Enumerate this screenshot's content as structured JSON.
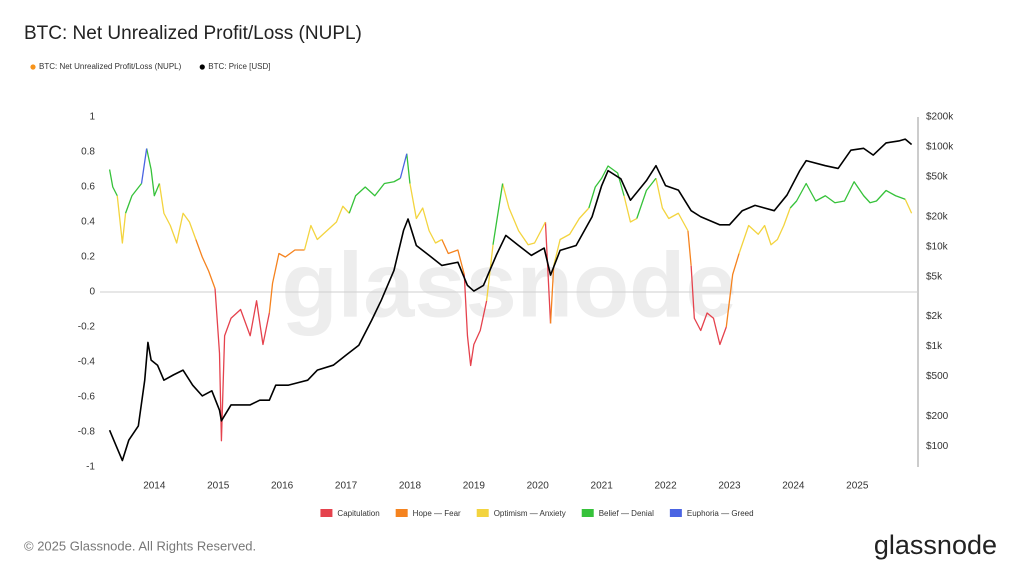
{
  "chart_data": {
    "type": "line",
    "title": "BTC: Net Unrealized Profit/Loss (NUPL)",
    "watermark": "glassnode",
    "footer": "© 2025 Glassnode. All Rights Reserved.",
    "brand": "glassnode",
    "nupl": {
      "name": "BTC: Net Unrealized Profit/Loss (NUPL)",
      "color": "#f7931a"
    },
    "xlim": [
      2013.15,
      2025.95
    ],
    "xticks": [
      2014,
      2015,
      2016,
      2017,
      2018,
      2019,
      2020,
      2021,
      2022,
      2023,
      2024,
      2025
    ],
    "ylim": [
      -1,
      1
    ],
    "yticks": [
      -1,
      -0.8,
      -0.6,
      -0.4,
      -0.2,
      0,
      0.2,
      0.4,
      0.6,
      0.8,
      1
    ],
    "zero_line": true,
    "y2log": true,
    "y2lim": [
      62,
      200000
    ],
    "y2ticks": [
      {
        "value": 100,
        "label": "$100"
      },
      {
        "value": 200,
        "label": "$200"
      },
      {
        "value": 500,
        "label": "$500"
      },
      {
        "value": 1000,
        "label": "$1k"
      },
      {
        "value": 2000,
        "label": "$2k"
      },
      {
        "value": 5000,
        "label": "$5k"
      },
      {
        "value": 10000,
        "label": "$10k"
      },
      {
        "value": 20000,
        "label": "$20k"
      },
      {
        "value": 50000,
        "label": "$50k"
      },
      {
        "value": 100000,
        "label": "$100k"
      },
      {
        "value": 200000,
        "label": "$200k"
      }
    ],
    "series": [
      {
        "name": "Capitulation",
        "color": "#e5424d",
        "x": [
          2014.95,
          2015.02,
          2015.05,
          2015.1,
          2015.2,
          2015.35,
          2015.5,
          2015.6,
          2015.7,
          2015.8,
          null,
          2018.85,
          2018.9,
          2018.95,
          2019.0,
          2019.1,
          2019.2,
          null,
          2020.12,
          2020.2,
          null,
          2022.4,
          2022.45,
          2022.55,
          2022.65,
          2022.75,
          2022.85,
          2022.95
        ],
        "values": [
          0.02,
          -0.35,
          -0.85,
          -0.25,
          -0.15,
          -0.1,
          -0.25,
          -0.05,
          -0.3,
          -0.12,
          null,
          0.1,
          -0.25,
          -0.42,
          -0.3,
          -0.22,
          -0.05,
          null,
          0.4,
          -0.18,
          null,
          0.15,
          -0.15,
          -0.22,
          -0.12,
          -0.15,
          -0.3,
          -0.2
        ]
      },
      {
        "name": "Hope — Fear",
        "color": "#f5831f",
        "x": [
          2014.65,
          2014.75,
          2014.85,
          2014.95,
          null,
          2015.8,
          2015.85,
          2015.95,
          2016.05,
          2016.2,
          2016.35,
          null,
          2018.5,
          2018.6,
          2018.75,
          2018.85,
          null,
          2020.2,
          2020.25,
          null,
          2022.35,
          2022.4,
          null,
          2022.95,
          2023.05,
          2023.15
        ],
        "values": [
          0.3,
          0.2,
          0.12,
          0.02,
          null,
          -0.12,
          0.05,
          0.22,
          0.2,
          0.24,
          0.24,
          null,
          0.3,
          0.22,
          0.24,
          0.1,
          null,
          -0.18,
          0.15,
          null,
          0.35,
          0.15,
          null,
          -0.2,
          0.1,
          0.22
        ]
      },
      {
        "name": "Optimism — Anxiety",
        "color": "#f3d43f",
        "x": [
          2013.42,
          2013.5,
          2013.55,
          null,
          2014.08,
          2014.15,
          2014.25,
          2014.35,
          2014.45,
          2014.55,
          2014.65,
          null,
          2016.35,
          2016.45,
          2016.55,
          2016.7,
          2016.85,
          2016.95,
          2017.05,
          null,
          2018.0,
          2018.1,
          2018.2,
          2018.3,
          2018.4,
          2018.5,
          null,
          2019.2,
          2019.3,
          null,
          2019.45,
          2019.55,
          2019.7,
          2019.85,
          2019.95,
          2020.05,
          2020.12,
          null,
          2020.25,
          2020.35,
          2020.5,
          2020.65,
          2020.8,
          null,
          2021.35,
          2021.45,
          2021.55,
          null,
          2021.85,
          2021.95,
          2022.05,
          2022.2,
          2022.35,
          null,
          2023.15,
          2023.3,
          2023.45,
          2023.55,
          2023.65,
          2023.75,
          2023.85,
          2023.95,
          null,
          2025.75,
          2025.85
        ],
        "values": [
          0.55,
          0.28,
          0.45,
          null,
          0.62,
          0.45,
          0.38,
          0.28,
          0.45,
          0.4,
          0.3,
          null,
          0.24,
          0.38,
          0.3,
          0.35,
          0.4,
          0.49,
          0.45,
          null,
          0.62,
          0.42,
          0.48,
          0.35,
          0.28,
          0.3,
          null,
          -0.05,
          0.27,
          null,
          0.62,
          0.48,
          0.35,
          0.27,
          0.28,
          0.35,
          0.4,
          null,
          0.15,
          0.3,
          0.33,
          0.42,
          0.48,
          null,
          0.55,
          0.4,
          0.42,
          null,
          0.65,
          0.48,
          0.42,
          0.45,
          0.35,
          null,
          0.22,
          0.38,
          0.33,
          0.38,
          0.27,
          0.3,
          0.38,
          0.48,
          null,
          0.53,
          0.45
        ]
      },
      {
        "name": "Belief — Denial",
        "color": "#36c23a",
        "x": [
          2013.3,
          2013.35,
          2013.42,
          null,
          2013.55,
          2013.65,
          2013.8,
          null,
          2013.88,
          2013.95,
          2014.0,
          2014.08,
          null,
          2017.05,
          2017.15,
          2017.3,
          2017.45,
          2017.6,
          2017.75,
          2017.85,
          null,
          2017.95,
          2018.0,
          null,
          2019.3,
          2019.45,
          null,
          2020.8,
          2020.9,
          2021.0,
          2021.1,
          2021.25,
          2021.35,
          null,
          2021.55,
          2021.7,
          2021.85,
          null,
          2023.95,
          2024.05,
          2024.2,
          2024.35,
          2024.5,
          2024.65,
          2024.8,
          2024.95,
          2025.1,
          2025.2,
          2025.3,
          2025.45,
          2025.6,
          2025.75
        ],
        "values": [
          0.7,
          0.6,
          0.55,
          null,
          0.45,
          0.55,
          0.62,
          null,
          0.82,
          0.7,
          0.55,
          0.62,
          null,
          0.45,
          0.55,
          0.6,
          0.55,
          0.62,
          0.63,
          0.65,
          null,
          0.79,
          0.62,
          null,
          0.27,
          0.62,
          null,
          0.48,
          0.6,
          0.65,
          0.72,
          0.68,
          0.55,
          null,
          0.42,
          0.58,
          0.65,
          null,
          0.48,
          0.52,
          0.62,
          0.52,
          0.55,
          0.51,
          0.52,
          0.63,
          0.55,
          0.51,
          0.52,
          0.58,
          0.55,
          0.53
        ]
      },
      {
        "name": "Euphoria — Greed",
        "color": "#4a64e3",
        "x": [
          2013.8,
          2013.88,
          null,
          2017.85,
          2017.95
        ],
        "values": [
          0.62,
          0.82,
          null,
          0.65,
          0.79
        ]
      },
      {
        "name": "BTC: Price [USD]",
        "color": "#000000",
        "axis": "y2",
        "x": [
          2013.3,
          2013.4,
          2013.5,
          2013.6,
          2013.75,
          2013.85,
          2013.9,
          2013.95,
          2014.05,
          2014.15,
          2014.3,
          2014.45,
          2014.6,
          2014.75,
          2014.9,
          2015.02,
          2015.05,
          2015.2,
          2015.5,
          2015.65,
          2015.8,
          2015.9,
          2016.1,
          2016.4,
          2016.55,
          2016.8,
          2017.0,
          2017.2,
          2017.4,
          2017.55,
          2017.75,
          2017.9,
          2017.97,
          2018.1,
          2018.3,
          2018.5,
          2018.75,
          2018.9,
          2019.0,
          2019.15,
          2019.35,
          2019.5,
          2019.7,
          2019.9,
          2020.1,
          2020.2,
          2020.35,
          2020.6,
          2020.85,
          2021.0,
          2021.1,
          2021.3,
          2021.45,
          2021.7,
          2021.85,
          2022.0,
          2022.2,
          2022.4,
          2022.55,
          2022.85,
          2023.0,
          2023.2,
          2023.4,
          2023.7,
          2023.9,
          2024.1,
          2024.2,
          2024.5,
          2024.7,
          2024.9,
          2025.1,
          2025.25,
          2025.45,
          2025.65,
          2025.75,
          2025.85
        ],
        "values": [
          145,
          102,
          72,
          115,
          160,
          460,
          1100,
          730,
          650,
          460,
          520,
          580,
          410,
          320,
          360,
          230,
          180,
          260,
          260,
          290,
          290,
          410,
          410,
          460,
          580,
          650,
          820,
          1030,
          1830,
          2900,
          5800,
          14600,
          19000,
          10300,
          8200,
          6500,
          7000,
          4100,
          3600,
          4100,
          8200,
          13000,
          10300,
          8200,
          9700,
          5200,
          9200,
          10300,
          20000,
          41000,
          58000,
          48000,
          29300,
          46000,
          65000,
          41000,
          37000,
          23000,
          20000,
          16600,
          16600,
          23000,
          26000,
          23000,
          33000,
          58000,
          73000,
          65000,
          61000,
          93000,
          97000,
          83000,
          110000,
          115000,
          120000,
          106000
        ]
      }
    ]
  }
}
